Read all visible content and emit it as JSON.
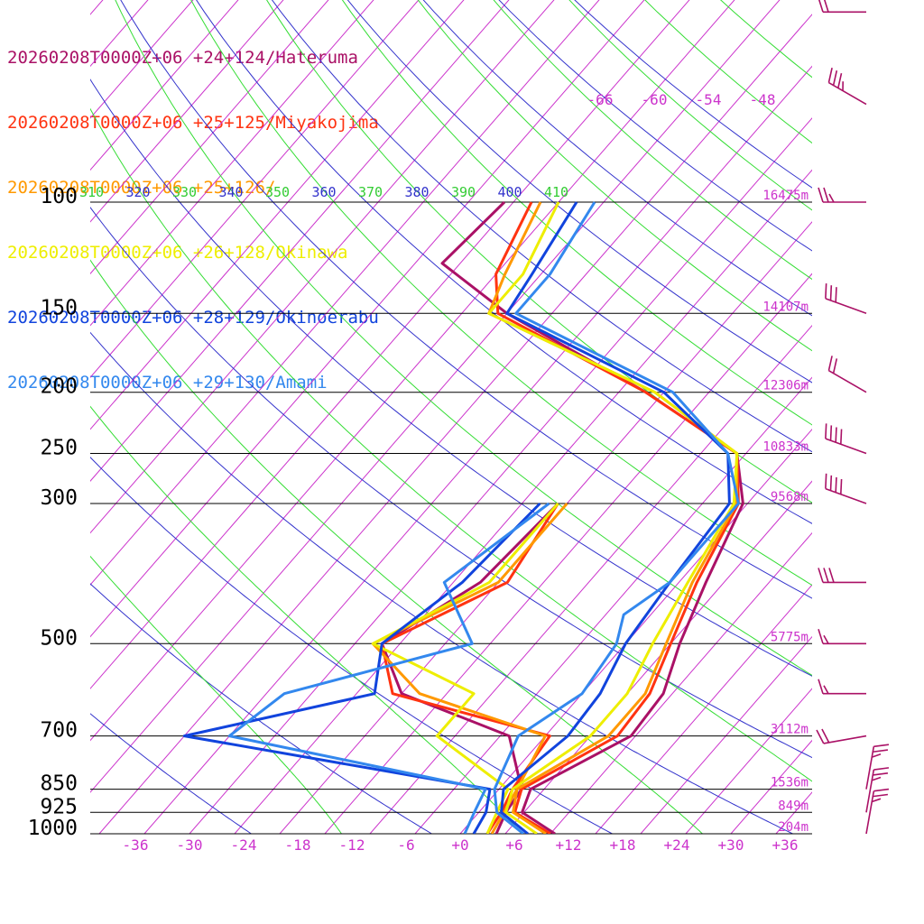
{
  "chart_data": {
    "type": "line",
    "title": "",
    "xlabel": "",
    "ylabel": "",
    "pressure_levels": [
      100,
      150,
      200,
      250,
      300,
      500,
      700,
      850,
      925,
      1000
    ],
    "pressure_labels": [
      "100",
      "150",
      "200",
      "250",
      "300",
      "500",
      "700",
      "850",
      "925",
      "1000"
    ],
    "height_labels": [
      "16475m",
      "14107m",
      "12306m",
      "10833m",
      "9568m",
      "5775m",
      "3112m",
      "1536m",
      "849m",
      "204m"
    ],
    "temp_ticks": [
      -36,
      -30,
      -24,
      -18,
      -12,
      -6,
      0,
      6,
      12,
      18,
      24,
      30,
      36
    ],
    "temp_tick_labels": [
      "-36",
      "-30",
      "-24",
      "-18",
      "-12",
      "-6",
      "+0",
      "+6",
      "+12",
      "+18",
      "+24",
      "+30",
      "+36"
    ],
    "upper_temp_labels": [
      "-66",
      "-60",
      "-54",
      "-48"
    ],
    "theta_labels": [
      "310",
      "320",
      "330",
      "340",
      "350",
      "360",
      "370",
      "380",
      "390",
      "400",
      "410"
    ],
    "xlim": [
      -40,
      40
    ],
    "ylim": [
      1000,
      100
    ],
    "colors": {
      "isotherm": "#cc33cc",
      "dry_adiabat": "#3333cc",
      "moist_adiabat": "#33dd33",
      "isobar": "#000000",
      "wind_barb": "#aa1166"
    },
    "series": [
      {
        "name": "20260208T0000Z+06 +24+124/Hateruma",
        "color": "#aa1166",
        "temperature": [
          [
            1000,
            10.5
          ],
          [
            925,
            4.8
          ],
          [
            850,
            3.5
          ],
          [
            700,
            9.5
          ],
          [
            600,
            9
          ],
          [
            500,
            6
          ],
          [
            400,
            3
          ],
          [
            300,
            -0.5
          ],
          [
            250,
            -6
          ],
          [
            200,
            -22
          ],
          [
            150,
            -45
          ],
          [
            125,
            -57
          ],
          [
            100,
            -56
          ]
        ],
        "dewpoint": [
          [
            1000,
            4
          ],
          [
            925,
            3
          ],
          [
            850,
            2.5
          ],
          [
            700,
            -4
          ],
          [
            600,
            -20
          ],
          [
            500,
            -27
          ],
          [
            400,
            -22
          ],
          [
            300,
            -21
          ]
        ]
      },
      {
        "name": "20260208T0000Z+06 +25+125/Miyakojima",
        "color": "#ff3311",
        "temperature": [
          [
            1000,
            10
          ],
          [
            925,
            4
          ],
          [
            850,
            2.5
          ],
          [
            700,
            8
          ],
          [
            600,
            7.5
          ],
          [
            500,
            5
          ],
          [
            400,
            2
          ],
          [
            300,
            -1
          ],
          [
            250,
            -6
          ],
          [
            200,
            -22
          ],
          [
            150,
            -46
          ],
          [
            130,
            -50
          ],
          [
            100,
            -53
          ]
        ],
        "dewpoint": [
          [
            1000,
            3
          ],
          [
            925,
            2.5
          ],
          [
            850,
            1.5
          ],
          [
            700,
            0.5
          ],
          [
            600,
            -21
          ],
          [
            500,
            -27
          ],
          [
            400,
            -19
          ],
          [
            300,
            -21
          ]
        ]
      },
      {
        "name": "20260208T0000Z+06 +25+126/",
        "color": "#ff9900",
        "temperature": [
          [
            1000,
            9.5
          ],
          [
            925,
            3.8
          ],
          [
            850,
            2
          ],
          [
            700,
            7
          ],
          [
            600,
            7
          ],
          [
            500,
            4.5
          ],
          [
            400,
            1.5
          ],
          [
            300,
            -1.2
          ],
          [
            250,
            -6
          ],
          [
            200,
            -21
          ],
          [
            150,
            -47
          ],
          [
            130,
            -49
          ],
          [
            100,
            -52
          ]
        ],
        "dewpoint": [
          [
            1000,
            3.5
          ],
          [
            925,
            2.8
          ],
          [
            850,
            2
          ],
          [
            700,
            0
          ],
          [
            600,
            -18
          ],
          [
            500,
            -28
          ],
          [
            400,
            -20
          ],
          [
            300,
            -20
          ]
        ]
      },
      {
        "name": "20260208T0000Z+06 +26+128/Okinawa",
        "color": "#eeee00",
        "temperature": [
          [
            1000,
            8.5
          ],
          [
            925,
            3
          ],
          [
            850,
            1.5
          ],
          [
            700,
            5
          ],
          [
            600,
            5
          ],
          [
            500,
            3
          ],
          [
            400,
            1
          ],
          [
            300,
            -1.5
          ],
          [
            250,
            -6
          ],
          [
            200,
            -21
          ],
          [
            150,
            -47
          ],
          [
            130,
            -47
          ],
          [
            100,
            -50
          ]
        ],
        "dewpoint": [
          [
            1000,
            3
          ],
          [
            925,
            2
          ],
          [
            850,
            1
          ],
          [
            700,
            -12
          ],
          [
            600,
            -12
          ],
          [
            500,
            -28
          ],
          [
            400,
            -21
          ],
          [
            300,
            -21
          ]
        ]
      },
      {
        "name": "20260208T0000Z+06 +28+129/Okinoerabu",
        "color": "#1144dd",
        "temperature": [
          [
            1000,
            7.5
          ],
          [
            925,
            2.5
          ],
          [
            850,
            0.5
          ],
          [
            700,
            2.5
          ],
          [
            600,
            2
          ],
          [
            500,
            0
          ],
          [
            400,
            -1
          ],
          [
            300,
            -2
          ],
          [
            250,
            -7
          ],
          [
            200,
            -20
          ],
          [
            150,
            -45
          ],
          [
            130,
            -46
          ],
          [
            100,
            -48
          ]
        ],
        "dewpoint": [
          [
            1000,
            1.5
          ],
          [
            925,
            0.8
          ],
          [
            850,
            -1
          ],
          [
            700,
            -40
          ],
          [
            600,
            -23
          ],
          [
            500,
            -27
          ],
          [
            400,
            -24
          ],
          [
            300,
            -23
          ]
        ]
      },
      {
        "name": "20260208T0000Z+06 +29+130/Amami",
        "color": "#3388ee",
        "temperature": [
          [
            1000,
            7
          ],
          [
            925,
            2
          ],
          [
            850,
            -0.5
          ],
          [
            700,
            -3
          ],
          [
            600,
            0
          ],
          [
            500,
            -1
          ],
          [
            450,
            -3
          ],
          [
            400,
            -1
          ],
          [
            300,
            -1
          ],
          [
            250,
            -7
          ],
          [
            200,
            -19
          ],
          [
            150,
            -44
          ],
          [
            130,
            -44
          ],
          [
            100,
            -46
          ]
        ],
        "dewpoint": [
          [
            1000,
            0.5
          ],
          [
            925,
            -0.5
          ],
          [
            850,
            -1.5
          ],
          [
            700,
            -35
          ],
          [
            600,
            -33
          ],
          [
            500,
            -17
          ],
          [
            400,
            -26
          ],
          [
            300,
            -22
          ]
        ]
      }
    ],
    "wind_barbs": [
      {
        "pressure": 1000,
        "dir_deg": 10,
        "speed_kt": 25
      },
      {
        "pressure": 925,
        "dir_deg": 10,
        "speed_kt": 25
      },
      {
        "pressure": 850,
        "dir_deg": 10,
        "speed_kt": 25
      },
      {
        "pressure": 700,
        "dir_deg": 260,
        "speed_kt": 20
      },
      {
        "pressure": 600,
        "dir_deg": 270,
        "speed_kt": 15
      },
      {
        "pressure": 500,
        "dir_deg": 270,
        "speed_kt": 15
      },
      {
        "pressure": 400,
        "dir_deg": 270,
        "speed_kt": 60
      },
      {
        "pressure": 300,
        "dir_deg": 290,
        "speed_kt": 70
      },
      {
        "pressure": 250,
        "dir_deg": 290,
        "speed_kt": 70
      },
      {
        "pressure": 200,
        "dir_deg": 300,
        "speed_kt": 50
      },
      {
        "pressure": 150,
        "dir_deg": 290,
        "speed_kt": 60
      },
      {
        "pressure": 100,
        "dir_deg": 270,
        "speed_kt": 25
      },
      {
        "pressure": 70,
        "dir_deg": 300,
        "speed_kt": 35
      },
      {
        "pressure": 50,
        "dir_deg": 270,
        "speed_kt": 20
      }
    ]
  }
}
